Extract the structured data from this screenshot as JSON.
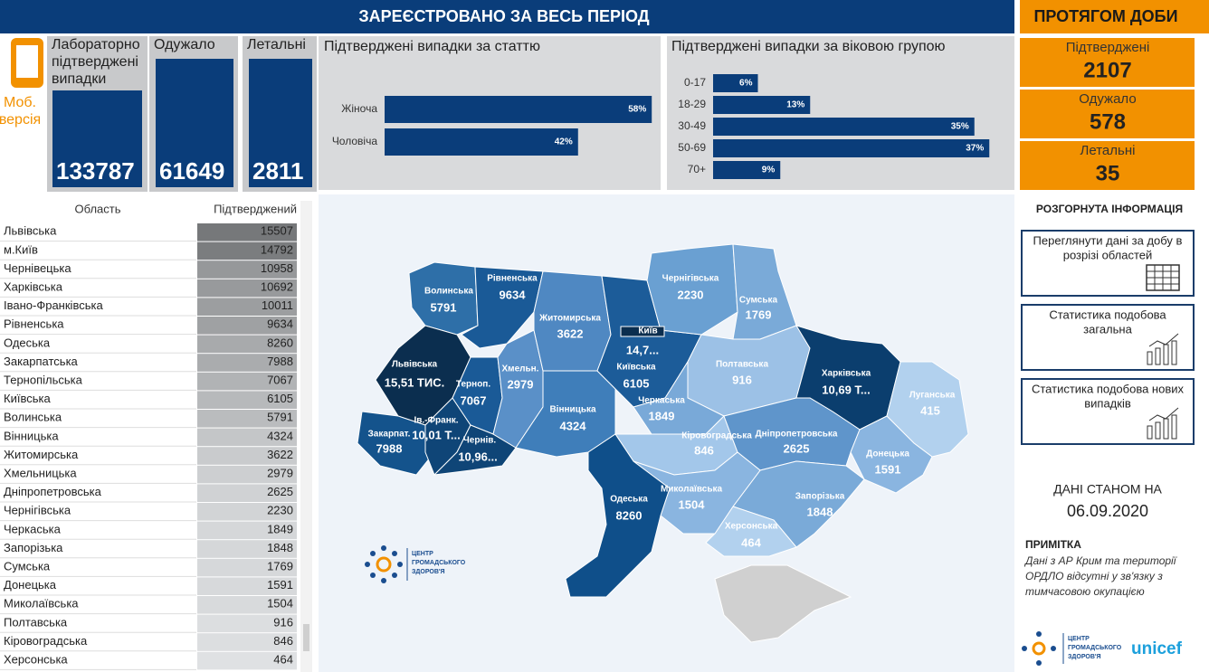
{
  "header": {
    "title": "ЗАРЕЄСТРОВАНО ЗА ВЕСЬ ПЕРІОД",
    "mobile": [
      "Моб.",
      "версія"
    ]
  },
  "totals": [
    {
      "label": [
        "Лабораторно",
        "підтверджені",
        "випадки"
      ],
      "value": 133787
    },
    {
      "label": [
        "Одужало"
      ],
      "value": 61649
    },
    {
      "label": [
        "Летальні"
      ],
      "value": 2811
    }
  ],
  "sex_chart": {
    "type": "bar",
    "title": "Підтверджені випадки за статтю",
    "categories": [
      "Жіноча",
      "Чоловіча"
    ],
    "values": [
      58,
      42
    ],
    "value_labels": [
      "58%",
      "42%"
    ],
    "color": "#0a3d7a"
  },
  "age_chart": {
    "type": "bar",
    "title": "Підтверджені випадки за віковою групою",
    "categories": [
      "0-17",
      "18-29",
      "30-49",
      "50-69",
      "70+"
    ],
    "values": [
      6,
      13,
      35,
      37,
      9
    ],
    "value_labels": [
      "6%",
      "13%",
      "35%",
      "37%",
      "9%"
    ],
    "color": "#0a3d7a"
  },
  "table": {
    "columns": [
      "Область",
      "Підтверджений"
    ],
    "rows": [
      [
        "Львівська",
        15507
      ],
      [
        "м.Київ",
        14792
      ],
      [
        "Чернівецька",
        10958
      ],
      [
        "Харківська",
        10692
      ],
      [
        "Івано-Франківська",
        10011
      ],
      [
        "Рівненська",
        9634
      ],
      [
        "Одеська",
        8260
      ],
      [
        "Закарпатська",
        7988
      ],
      [
        "Тернопільська",
        7067
      ],
      [
        "Київська",
        6105
      ],
      [
        "Волинська",
        5791
      ],
      [
        "Вінницька",
        4324
      ],
      [
        "Житомирська",
        3622
      ],
      [
        "Хмельницька",
        2979
      ],
      [
        "Дніпропетровська",
        2625
      ],
      [
        "Чернігівська",
        2230
      ],
      [
        "Черкаська",
        1849
      ],
      [
        "Запорізька",
        1848
      ],
      [
        "Сумська",
        1769
      ],
      [
        "Донецька",
        1591
      ],
      [
        "Миколаївська",
        1504
      ],
      [
        "Полтавська",
        916
      ],
      [
        "Кіровоградська",
        846
      ],
      [
        "Херсонська",
        464
      ]
    ]
  },
  "map": {
    "regions": [
      {
        "name": "Волинська",
        "value": 5791
      },
      {
        "name": "Рівненська",
        "value": 9634
      },
      {
        "name": "Львівська",
        "value": "15,51 ТИС."
      },
      {
        "name": "Закарпат.",
        "value": 7988
      },
      {
        "name": "Ів.-Франк.",
        "value": "10,01 Т..."
      },
      {
        "name": "Терноп.",
        "value": 7067
      },
      {
        "name": "Чернів.",
        "value": "10,96..."
      },
      {
        "name": "Хмельн.",
        "value": 2979
      },
      {
        "name": "Житомирська",
        "value": 3622
      },
      {
        "name": "Вінницька",
        "value": 4324
      },
      {
        "name": "Київська",
        "value": 6105
      },
      {
        "name": "Чернігівська",
        "value": 2230
      },
      {
        "name": "Сумська",
        "value": 1769
      },
      {
        "name": "Полтавська",
        "value": 916
      },
      {
        "name": "Черкаська",
        "value": 1849
      },
      {
        "name": "Кіровоградська",
        "value": 846
      },
      {
        "name": "Харківська",
        "value": "10,69 Т..."
      },
      {
        "name": "Луганська",
        "value": 415
      },
      {
        "name": "Дніпропетровська",
        "value": 2625
      },
      {
        "name": "Донецька",
        "value": 1591
      },
      {
        "name": "Запорізька",
        "value": 1848
      },
      {
        "name": "Херсонська",
        "value": 464
      },
      {
        "name": "Миколаївська",
        "value": 1504
      },
      {
        "name": "Одеська",
        "value": 8260
      },
      {
        "name": "Київ",
        "value": "14,7..."
      }
    ],
    "logo": [
      "ЦЕНТР",
      "ГРОМАДСЬКОГО",
      "ЗДОРОВ'Я"
    ]
  },
  "daily": {
    "title": "ПРОТЯГОМ ДОБИ",
    "items": [
      {
        "label": "Підтверджені",
        "value": 2107
      },
      {
        "label": "Одужало",
        "value": 578
      },
      {
        "label": "Летальні",
        "value": 35
      }
    ]
  },
  "details": {
    "title": "РОЗГОРНУТА ІНФОРМАЦІЯ",
    "buttons": [
      [
        "Переглянути дані за добу в",
        "розрізі областей"
      ],
      [
        "Статистика подобова",
        "загальна"
      ],
      [
        "Статистика подобова нових",
        "випадків"
      ]
    ]
  },
  "date": {
    "label": "ДАНІ СТАНОМ НА",
    "value": "06.09.2020"
  },
  "note": {
    "title": "ПРИМІТКА",
    "lines": [
      "Дані з АР Крим та території",
      "ОРДЛО відсутні у зв'язку з",
      "тимчасовою окупацією"
    ]
  },
  "footer": {
    "logo": [
      "ЦЕНТР",
      "ГРОМАДСЬКОГО",
      "ЗДОРОВ'Я"
    ],
    "partner": "unicef"
  }
}
